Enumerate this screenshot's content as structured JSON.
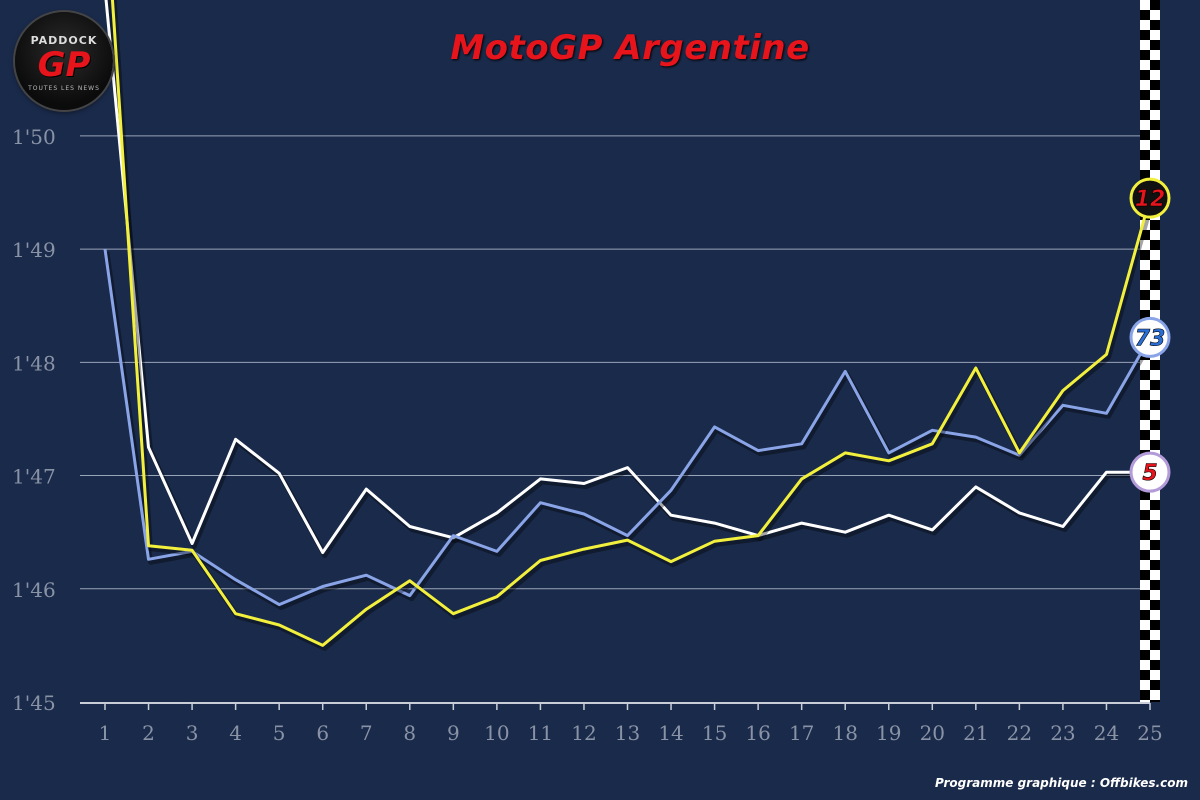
{
  "title": "MotoGP Argentine",
  "credit": "Programme graphique : Offbikes.com",
  "logo": {
    "top_text": "PADDOCK",
    "mark": "GP",
    "subtitle": "TOUTES LES NEWS"
  },
  "chart_data": {
    "type": "line",
    "title": "MotoGP Argentine",
    "xlabel": "",
    "ylabel": "",
    "x": [
      1,
      2,
      3,
      4,
      5,
      6,
      7,
      8,
      9,
      10,
      11,
      12,
      13,
      14,
      15,
      16,
      17,
      18,
      19,
      20,
      21,
      22,
      23,
      24,
      25
    ],
    "ylim_seconds": [
      105,
      111.2
    ],
    "y_ticks_seconds": [
      105,
      106,
      107,
      108,
      109,
      110
    ],
    "y_tick_labels": [
      "1'45",
      "1'46",
      "1'47",
      "1'48",
      "1'49",
      "1'50"
    ],
    "grid": "horizontal",
    "finish_flag": "checkered line at lap 25",
    "series": [
      {
        "name": "12",
        "color": "#f2f03c",
        "values": [
          112.2,
          106.38,
          106.34,
          105.78,
          105.68,
          105.5,
          105.82,
          106.07,
          105.78,
          105.93,
          106.25,
          106.35,
          106.43,
          106.24,
          106.42,
          106.47,
          106.97,
          107.2,
          107.13,
          107.28,
          107.95,
          107.2,
          107.75,
          108.07,
          109.45
        ]
      },
      {
        "name": "73",
        "color": "#8aa4e8",
        "values": [
          109.0,
          106.26,
          106.33,
          106.08,
          105.86,
          106.02,
          106.12,
          105.94,
          106.47,
          106.33,
          106.76,
          106.66,
          106.47,
          106.87,
          107.43,
          107.22,
          107.28,
          107.92,
          107.2,
          107.4,
          107.34,
          107.18,
          107.62,
          107.55,
          108.22
        ]
      },
      {
        "name": "5",
        "color": "#ffffff",
        "values": [
          111.3,
          107.25,
          106.4,
          107.32,
          107.02,
          106.32,
          106.88,
          106.55,
          106.45,
          106.67,
          106.97,
          106.93,
          107.07,
          106.65,
          106.58,
          106.47,
          106.58,
          106.5,
          106.65,
          106.52,
          106.9,
          106.67,
          106.55,
          107.03,
          107.03
        ]
      }
    ]
  }
}
